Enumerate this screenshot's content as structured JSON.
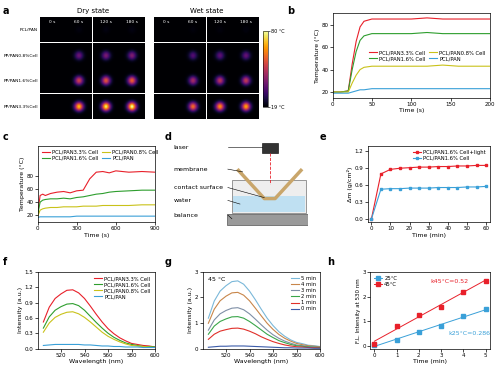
{
  "thermal_images": {
    "panel": "a",
    "groups": [
      "Dry state",
      "Wet state"
    ],
    "times": [
      "0 s",
      "60 s",
      "120 s",
      "180 s"
    ],
    "rows": [
      "PCL/PAN",
      "PP/PAN0.8%Cell",
      "PP/PAN1.6%Cell",
      "PP/PAN3.3%Cell"
    ],
    "colorbar": {
      "range": [
        19,
        80
      ],
      "ticks": [
        {
          "value": 19,
          "label": "19 °C"
        },
        {
          "value": 80,
          "label": "80 °C"
        }
      ]
    }
  },
  "setup_photo": {
    "panel": "d",
    "labels": [
      "laser",
      "membrane",
      "contact surface",
      "water",
      "balance"
    ]
  },
  "chart_data": [
    {
      "panel": "b",
      "type": "line",
      "x_label": "Time (s)",
      "y_label": "Temperature (°C)",
      "x": [
        0,
        10,
        20,
        25,
        30,
        35,
        40,
        50,
        60,
        80,
        100,
        120,
        140,
        160,
        180,
        200
      ],
      "series": [
        {
          "name": "PCL/PAN3.3% Cell",
          "color": "#e8202a",
          "values": [
            20,
            20,
            21,
            45,
            65,
            78,
            83,
            85,
            85,
            85,
            85,
            86,
            85,
            85,
            85,
            85
          ]
        },
        {
          "name": "PCL/PAN1.6% Cell",
          "color": "#2e9e2e",
          "values": [
            20,
            20,
            21,
            40,
            56,
            66,
            70,
            72,
            72,
            72,
            72,
            73,
            72,
            72,
            72,
            72
          ]
        },
        {
          "name": "PCL/PAN0.8% Cell",
          "color": "#c9c21a",
          "values": [
            20,
            20,
            20,
            28,
            35,
            40,
            42,
            43,
            43,
            43,
            43,
            43,
            44,
            43,
            43,
            43
          ]
        },
        {
          "name": "PCL/PAN",
          "color": "#3aa0d8",
          "values": [
            19,
            19,
            19,
            20,
            21,
            22,
            22,
            23,
            23,
            23,
            23,
            23,
            23,
            23,
            23,
            23
          ]
        }
      ],
      "xlim": [
        0,
        200
      ],
      "xticks": [
        0,
        50,
        100,
        150,
        200
      ],
      "ylim": [
        15,
        90
      ],
      "yticks": [
        20,
        40,
        60,
        80
      ],
      "legend": "center right"
    },
    {
      "panel": "c",
      "type": "line",
      "x_label": "Time (s)",
      "y_label": "Temperature (°C)",
      "x": [
        0,
        20,
        40,
        60,
        100,
        150,
        200,
        250,
        300,
        350,
        400,
        450,
        500,
        550,
        600,
        700,
        800,
        900
      ],
      "series": [
        {
          "name": "PCL/PAN3.3% Cell",
          "color": "#e8202a",
          "values": [
            20,
            50,
            52,
            50,
            53,
            55,
            56,
            54,
            57,
            58,
            75,
            85,
            86,
            84,
            87,
            85,
            86,
            85
          ]
        },
        {
          "name": "PCL/PAN1.6% Cell",
          "color": "#2e9e2e",
          "values": [
            20,
            40,
            43,
            44,
            45,
            45,
            46,
            45,
            47,
            48,
            50,
            52,
            53,
            55,
            56,
            57,
            58,
            58
          ]
        },
        {
          "name": "PCL/PAN0.8% Cell",
          "color": "#c9c21a",
          "values": [
            18,
            28,
            30,
            31,
            32,
            32,
            33,
            33,
            33,
            34,
            34,
            34,
            35,
            35,
            35,
            35,
            36,
            36
          ]
        },
        {
          "name": "PCL/PAN",
          "color": "#3aa0d8",
          "values": [
            17,
            18,
            18,
            18,
            18,
            18,
            18,
            18,
            19,
            19,
            19,
            19,
            19,
            19,
            19,
            19,
            19,
            19
          ]
        }
      ],
      "xlim": [
        0,
        900
      ],
      "xticks": [
        0,
        300,
        600,
        900
      ],
      "ylim": [
        10,
        125
      ],
      "yticks": [
        20,
        40,
        60,
        80
      ],
      "legend": "upper left"
    },
    {
      "panel": "e",
      "type": "line",
      "marker": "square",
      "x_label": "Time (min)",
      "y_label": "Δm (g/cm²)",
      "x": [
        0,
        5,
        10,
        15,
        20,
        25,
        30,
        35,
        40,
        45,
        50,
        55,
        60
      ],
      "series": [
        {
          "name": "PCL/PAN1.6% Cell+light",
          "color": "#e8202a",
          "values": [
            0,
            0.8,
            0.88,
            0.9,
            0.91,
            0.92,
            0.92,
            0.93,
            0.93,
            0.94,
            0.94,
            0.95,
            0.95
          ]
        },
        {
          "name": "PCL/PAN1.6% Cell",
          "color": "#3aa0d8",
          "values": [
            0,
            0.53,
            0.54,
            0.54,
            0.55,
            0.55,
            0.55,
            0.56,
            0.56,
            0.56,
            0.57,
            0.57,
            0.58
          ]
        }
      ],
      "xlim": [
        -2,
        62
      ],
      "xticks": [
        0,
        10,
        20,
        30,
        40,
        50,
        60
      ],
      "ylim": [
        -0.05,
        1.3
      ],
      "yticks": [
        {
          "value": 0,
          "label": "0.0"
        },
        {
          "value": 0.3,
          "label": "0.3"
        },
        {
          "value": 0.6,
          "label": "0.6"
        },
        {
          "value": 0.9,
          "label": "0.9"
        },
        {
          "value": 1.2,
          "label": "1.2"
        }
      ],
      "legend": "upper right"
    },
    {
      "panel": "f",
      "type": "line",
      "x_label": "Wavelength (nm)",
      "y_label": "Intensity (a.u.)",
      "x": [
        505,
        510,
        515,
        520,
        525,
        530,
        535,
        540,
        545,
        550,
        555,
        560,
        565,
        570,
        575,
        580,
        585,
        590,
        595,
        600
      ],
      "series": [
        {
          "name": "PCL/PAN3.3% Cell",
          "color": "#e8202a",
          "values": [
            0.52,
            0.81,
            0.98,
            1.07,
            1.14,
            1.15,
            1.09,
            0.98,
            0.83,
            0.67,
            0.52,
            0.39,
            0.29,
            0.21,
            0.15,
            0.1,
            0.08,
            0.06,
            0.05,
            0.03
          ]
        },
        {
          "name": "PCL/PAN1.6% Cell",
          "color": "#2e9e2e",
          "values": [
            0.4,
            0.62,
            0.75,
            0.82,
            0.87,
            0.88,
            0.84,
            0.75,
            0.63,
            0.51,
            0.4,
            0.3,
            0.22,
            0.16,
            0.11,
            0.08,
            0.06,
            0.04,
            0.04,
            0.03
          ]
        },
        {
          "name": "PCL/PAN0.8% Cell",
          "color": "#c9c21a",
          "values": [
            0.32,
            0.5,
            0.61,
            0.67,
            0.71,
            0.72,
            0.68,
            0.61,
            0.52,
            0.42,
            0.32,
            0.24,
            0.18,
            0.13,
            0.09,
            0.06,
            0.05,
            0.04,
            0.03,
            0.02
          ]
        },
        {
          "name": "PCL/PAN",
          "color": "#3aa0d8",
          "values": [
            0.06,
            0.07,
            0.08,
            0.08,
            0.08,
            0.08,
            0.08,
            0.07,
            0.07,
            0.06,
            0.05,
            0.05,
            0.04,
            0.04,
            0.03,
            0.03,
            0.03,
            0.02,
            0.02,
            0.02
          ]
        }
      ],
      "xlim": [
        500,
        600
      ],
      "xticks": [
        520,
        540,
        560,
        580,
        600
      ],
      "ylim": [
        0,
        1.5
      ],
      "yticks": [
        {
          "value": 0,
          "label": "0.0"
        },
        {
          "value": 0.3,
          "label": "0.3"
        },
        {
          "value": 0.6,
          "label": "0.6"
        },
        {
          "value": 0.9,
          "label": "0.9"
        },
        {
          "value": 1.2,
          "label": "1.2"
        },
        {
          "value": 1.5,
          "label": "1.5"
        }
      ],
      "legend": "upper right"
    },
    {
      "panel": "g",
      "type": "line",
      "x_label": "Wavelength (nm)",
      "y_label": "Intensity (a.u.)",
      "annotations": [
        "45 °C"
      ],
      "x": [
        505,
        510,
        515,
        520,
        525,
        530,
        535,
        540,
        545,
        550,
        555,
        560,
        565,
        570,
        575,
        580,
        585,
        590,
        595,
        600
      ],
      "series": [
        {
          "name": "5 min",
          "color": "#7ab8d9",
          "values": [
            1.19,
            1.86,
            2.25,
            2.46,
            2.62,
            2.65,
            2.52,
            2.25,
            1.91,
            1.54,
            1.19,
            0.9,
            0.66,
            0.48,
            0.34,
            0.24,
            0.19,
            0.13,
            0.11,
            0.08
          ]
        },
        {
          "name": "4 min",
          "color": "#c8864a",
          "values": [
            0.99,
            1.54,
            1.87,
            2.05,
            2.18,
            2.2,
            2.09,
            1.87,
            1.58,
            1.28,
            0.99,
            0.75,
            0.55,
            0.4,
            0.29,
            0.2,
            0.15,
            0.11,
            0.09,
            0.07
          ]
        },
        {
          "name": "3 min",
          "color": "#7f8fa6",
          "values": [
            0.72,
            1.12,
            1.36,
            1.49,
            1.58,
            1.6,
            1.52,
            1.36,
            1.15,
            0.93,
            0.72,
            0.54,
            0.4,
            0.29,
            0.21,
            0.14,
            0.11,
            0.08,
            0.06,
            0.05
          ]
        },
        {
          "name": "2 min",
          "color": "#3aa64a",
          "values": [
            0.56,
            0.88,
            1.06,
            1.16,
            1.24,
            1.25,
            1.19,
            1.06,
            0.9,
            0.73,
            0.56,
            0.43,
            0.31,
            0.23,
            0.16,
            0.11,
            0.09,
            0.06,
            0.05,
            0.04
          ]
        },
        {
          "name": "1 min",
          "color": "#e0302a",
          "values": [
            0.36,
            0.56,
            0.68,
            0.74,
            0.79,
            0.8,
            0.76,
            0.68,
            0.58,
            0.46,
            0.36,
            0.27,
            0.2,
            0.14,
            0.1,
            0.07,
            0.06,
            0.04,
            0.03,
            0.02
          ]
        },
        {
          "name": "0 min",
          "color": "#3b5ba9",
          "values": [
            0.05,
            0.07,
            0.09,
            0.09,
            0.1,
            0.1,
            0.1,
            0.09,
            0.08,
            0.07,
            0.06,
            0.05,
            0.04,
            0.03,
            0.03,
            0.02,
            0.02,
            0.02,
            0.01,
            0.01
          ]
        }
      ],
      "xlim": [
        500,
        600
      ],
      "xticks": [
        520,
        540,
        560,
        580,
        600
      ],
      "ylim": [
        0,
        3
      ],
      "yticks": [
        0,
        1,
        2,
        3
      ],
      "legend": "upper right"
    },
    {
      "panel": "h",
      "type": "scatter",
      "marker": "square",
      "x_label": "Time (min)",
      "y_label": "F.L. Intensity at 530 nm",
      "annotations": [
        "k45°C=0.52",
        "k25°C=0.286"
      ],
      "x": [
        0,
        1,
        2,
        3,
        4,
        5
      ],
      "series": [
        {
          "name": "25°C",
          "color": "#3aa0d8",
          "values": [
            0.05,
            0.25,
            0.55,
            0.82,
            1.2,
            1.5
          ]
        },
        {
          "name": "45°C",
          "color": "#e8202a",
          "values": [
            0.1,
            0.8,
            1.25,
            1.6,
            2.2,
            2.65
          ]
        }
      ],
      "xlim": [
        -0.2,
        5.2
      ],
      "xticks": [
        0,
        1,
        2,
        3,
        4,
        5
      ],
      "ylim": [
        -0.1,
        3
      ],
      "yticks": [
        0,
        1,
        2,
        3
      ],
      "legend": "upper left"
    }
  ]
}
